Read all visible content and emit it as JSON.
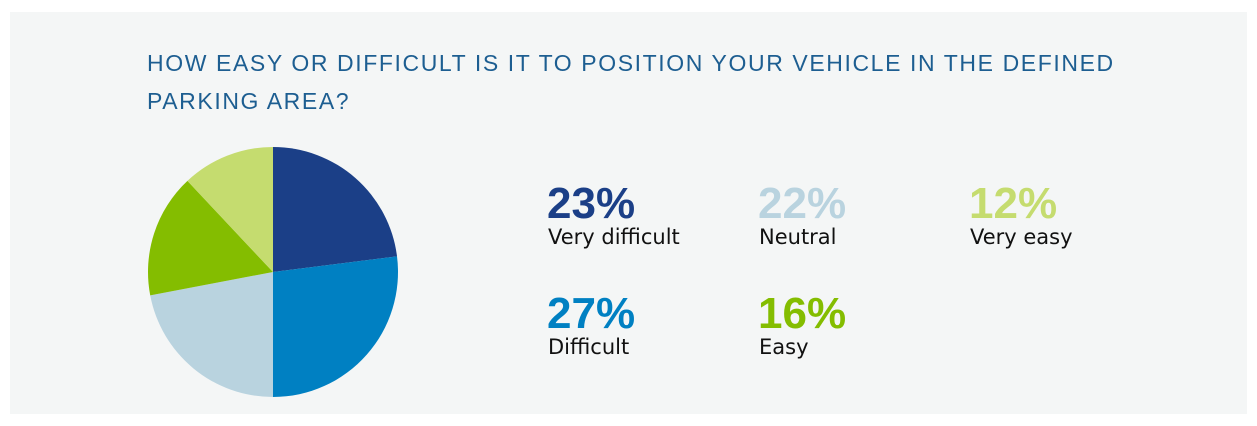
{
  "chart_data": {
    "type": "pie",
    "title": "HOW EASY OR DIFFICULT IS IT TO POSITION YOUR VEHICLE IN THE DEFINED PARKING AREA?",
    "categories": [
      "Very difficult",
      "Difficult",
      "Neutral",
      "Easy",
      "Very easy"
    ],
    "values": [
      23,
      27,
      22,
      16,
      12
    ],
    "value_labels": [
      "23%",
      "27%",
      "22%",
      "16%",
      "12%"
    ],
    "colors": [
      "#1b3f87",
      "#0080c2",
      "#b9d3df",
      "#84bd00",
      "#c5dc6f"
    ]
  }
}
